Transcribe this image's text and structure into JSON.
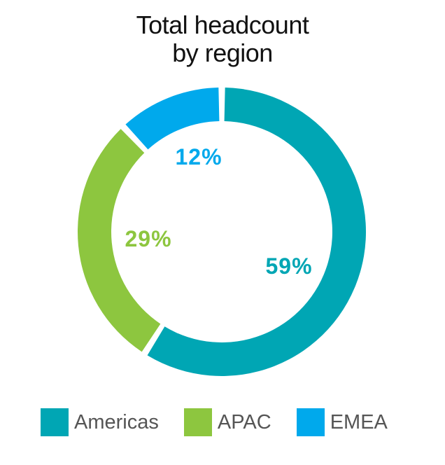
{
  "chart_data": {
    "type": "pie",
    "title_lines": [
      "Total headcount",
      "by region"
    ],
    "categories": [
      "Americas",
      "APAC",
      "EMEA"
    ],
    "values": [
      59,
      29,
      12
    ],
    "value_labels": [
      "59%",
      "29%",
      "12%"
    ],
    "colors": [
      "#00A6B4",
      "#8DC63F",
      "#00A9EC"
    ],
    "legend_position": "bottom"
  }
}
